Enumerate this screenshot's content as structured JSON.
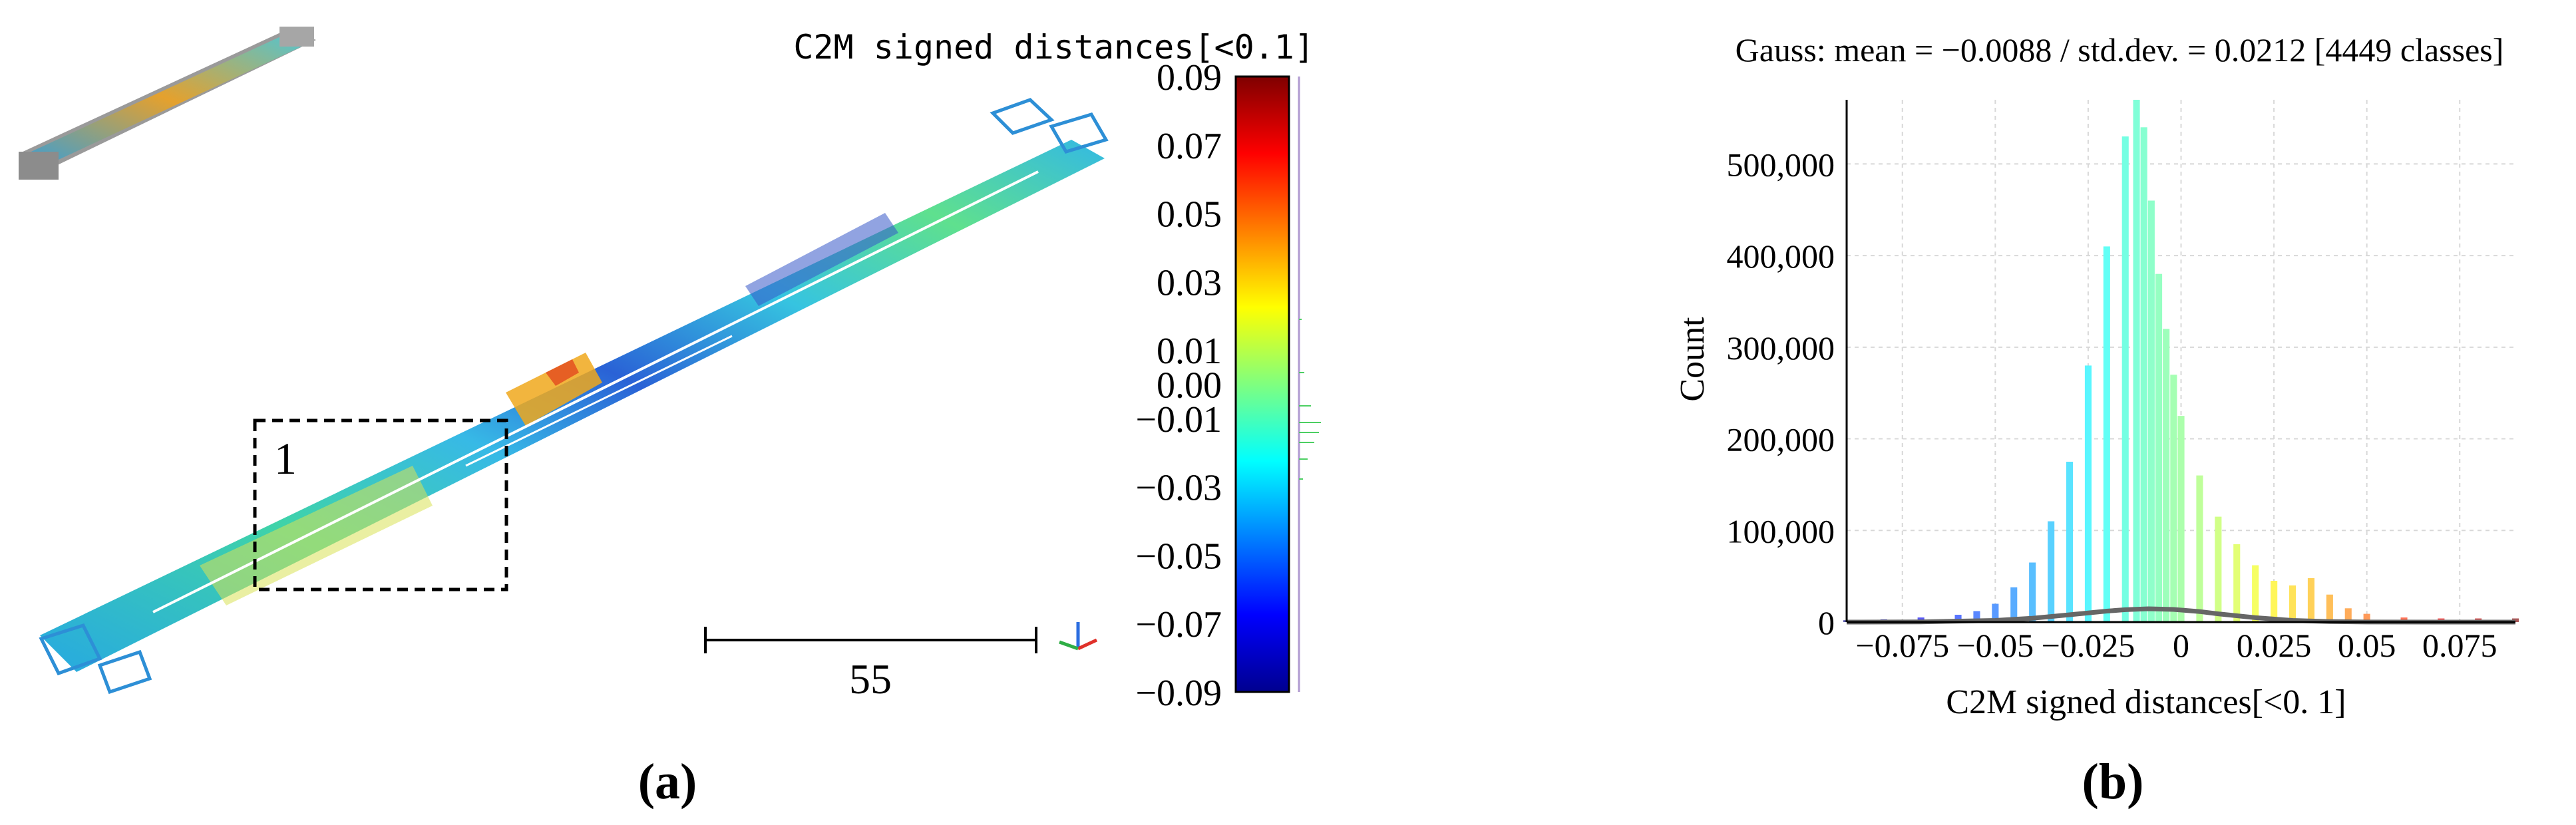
{
  "figure": {
    "panel_a_label": "(a)",
    "panel_b_label": "(b)"
  },
  "panel_a": {
    "colorbar_title": "C2M signed distances[<0.1]",
    "colorbar_ticks": [
      "0.09",
      "0.07",
      "0.05",
      "0.03",
      "0.01",
      "0.00",
      "−0.01",
      "−0.03",
      "−0.05",
      "−0.07",
      "−0.09"
    ],
    "colorbar_colors": [
      "#00008f",
      "#0000ff",
      "#007fff",
      "#00ffff",
      "#7fff7f",
      "#ffff00",
      "#ff7f00",
      "#ff0000",
      "#7f0000"
    ],
    "region_label": "1",
    "scale_bar_value": "55"
  },
  "chart_data": [
    {
      "type": "bar",
      "title": "Gauss: mean = −0.0088 / std.dev. = 0.0212 [4449 classes]",
      "xlabel": "C2M signed distances[<0. 1]",
      "ylabel": "Count",
      "xlim": [
        -0.09,
        0.09
      ],
      "ylim": [
        0,
        570000
      ],
      "x_ticks": [
        -0.075,
        -0.05,
        -0.025,
        0,
        0.025,
        0.05,
        0.075
      ],
      "x_tick_labels": [
        "−0.075",
        "−0.05",
        "−0.025",
        "0",
        "0.025",
        "0.05",
        "0.075"
      ],
      "y_ticks": [
        0,
        100000,
        200000,
        300000,
        400000,
        500000
      ],
      "y_tick_labels": [
        "0",
        "100,000",
        "200,000",
        "300,000",
        "400,000",
        "500,000"
      ],
      "grid": true,
      "x": [
        -0.09,
        -0.08,
        -0.07,
        -0.06,
        -0.055,
        -0.05,
        -0.045,
        -0.04,
        -0.035,
        -0.03,
        -0.025,
        -0.02,
        -0.015,
        -0.012,
        -0.01,
        -0.008,
        -0.006,
        -0.004,
        -0.002,
        0.0,
        0.005,
        0.01,
        0.015,
        0.02,
        0.025,
        0.03,
        0.035,
        0.04,
        0.045,
        0.05,
        0.06,
        0.07,
        0.08,
        0.09
      ],
      "values": [
        2000,
        3000,
        5000,
        8000,
        12000,
        20000,
        38000,
        65000,
        110000,
        175000,
        280000,
        410000,
        530000,
        570000,
        540000,
        460000,
        380000,
        320000,
        270000,
        225000,
        160000,
        115000,
        85000,
        62000,
        45000,
        40000,
        48000,
        30000,
        15000,
        9000,
        5000,
        4000,
        4000,
        4000
      ],
      "series": [
        {
          "name": "Gauss",
          "x": [
            -0.09,
            -0.07,
            -0.05,
            -0.04,
            -0.03,
            -0.02,
            -0.015,
            -0.0088,
            -0.002,
            0.005,
            0.01,
            0.02,
            0.03,
            0.04,
            0.05,
            0.07,
            0.09
          ],
          "values": [
            0,
            200,
            1800,
            4200,
            8000,
            12000,
            13500,
            14500,
            13800,
            11500,
            9000,
            4800,
            1800,
            500,
            100,
            0,
            0
          ]
        }
      ]
    }
  ]
}
